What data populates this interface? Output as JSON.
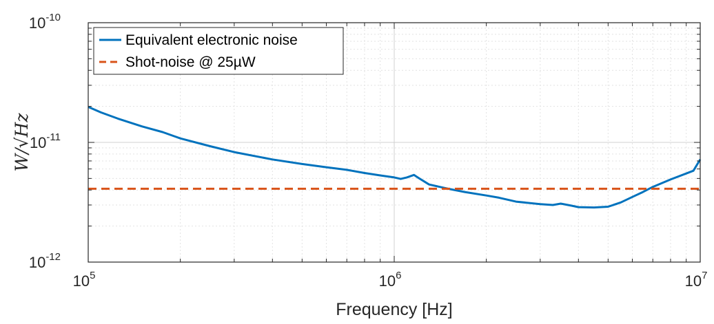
{
  "chart_data": {
    "type": "line",
    "xscale": "log",
    "yscale": "log",
    "xlim": [
      100000,
      10000000
    ],
    "ylim": [
      1e-12,
      1e-10
    ],
    "grid": true,
    "minor_grid": true,
    "legend_position": "top-left",
    "xlabel": "Frequency [Hz]",
    "ylabel": "W/√Hz",
    "xticks": [
      {
        "value": 100000,
        "base": "10",
        "exp": "5"
      },
      {
        "value": 1000000,
        "base": "10",
        "exp": "6"
      },
      {
        "value": 10000000,
        "base": "10",
        "exp": "7"
      }
    ],
    "yticks": [
      {
        "value": 1e-12,
        "base": "10",
        "exp": "-12"
      },
      {
        "value": 1e-11,
        "base": "10",
        "exp": "-11"
      },
      {
        "value": 1e-10,
        "base": "10",
        "exp": "-10"
      }
    ],
    "series": [
      {
        "name": "Equivalent electronic noise",
        "color": "#0072BD",
        "style": "solid",
        "x": [
          100000,
          110000,
          125000,
          150000,
          175000,
          200000,
          250000,
          300000,
          400000,
          500000,
          600000,
          700000,
          800000,
          900000,
          1000000,
          1050000,
          1100000,
          1160000,
          1200000,
          1300000,
          1500000,
          1700000,
          2000000,
          2200000,
          2500000,
          3000000,
          3300000,
          3500000,
          3800000,
          4000000,
          4500000,
          5000000,
          5500000,
          6000000,
          6500000,
          7000000,
          8000000,
          9000000,
          9500000,
          10000000
        ],
        "y": [
          1.98e-11,
          1.78e-11,
          1.58e-11,
          1.36e-11,
          1.22e-11,
          1.08e-11,
          9.3e-12,
          8.3e-12,
          7.2e-12,
          6.6e-12,
          6.2e-12,
          5.9e-12,
          5.55e-12,
          5.3e-12,
          5.1e-12,
          4.95e-12,
          5.1e-12,
          5.35e-12,
          5.05e-12,
          4.45e-12,
          4.1e-12,
          3.85e-12,
          3.6e-12,
          3.45e-12,
          3.2e-12,
          3.05e-12,
          3e-12,
          3.08e-12,
          2.96e-12,
          2.88e-12,
          2.86e-12,
          2.9e-12,
          3.15e-12,
          3.5e-12,
          3.85e-12,
          4.25e-12,
          4.9e-12,
          5.5e-12,
          5.8e-12,
          7.2e-12
        ]
      },
      {
        "name": "Shot-noise @ 25µW",
        "color": "#D95319",
        "style": "dashed",
        "x": [
          100000,
          10000000
        ],
        "y": [
          4.1e-12,
          4.1e-12
        ]
      }
    ]
  }
}
